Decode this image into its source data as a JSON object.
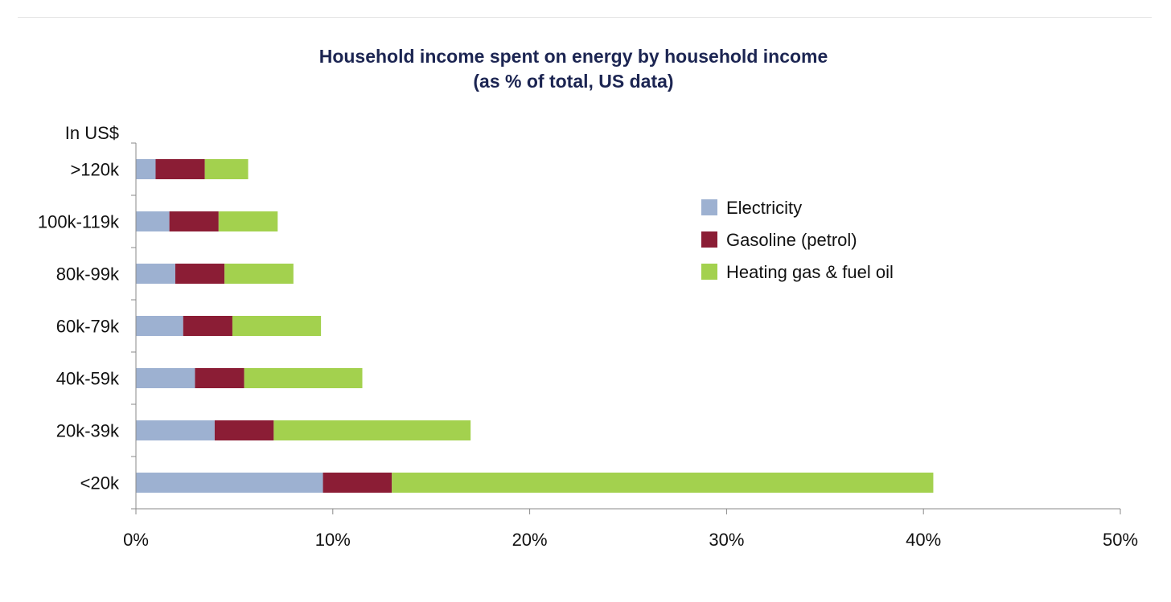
{
  "chart_data": {
    "type": "bar",
    "orientation": "horizontal",
    "stacked": true,
    "title": "Household income spent on energy by household income",
    "subtitle": "(as % of total, US data)",
    "ylabel": "In US$",
    "xlabel": "",
    "categories": [
      ">120k",
      "100k-119k",
      "80k-99k",
      "60k-79k",
      "40k-59k",
      "20k-39k",
      "<20k"
    ],
    "series": [
      {
        "name": "Electricity",
        "color": "#9db1d1",
        "values": [
          1.0,
          1.7,
          2.0,
          2.4,
          3.0,
          4.0,
          9.5
        ]
      },
      {
        "name": "Gasoline (petrol)",
        "color": "#8b1d35",
        "values": [
          2.5,
          2.5,
          2.5,
          2.5,
          2.5,
          3.0,
          3.5
        ]
      },
      {
        "name": "Heating gas & fuel oil",
        "color": "#a3d14e",
        "values": [
          2.2,
          3.0,
          3.5,
          4.5,
          6.0,
          10.0,
          27.5
        ]
      }
    ],
    "xlim": [
      0,
      50
    ],
    "xticks": [
      "0%",
      "10%",
      "20%",
      "30%",
      "40%",
      "50%"
    ],
    "grid": false,
    "legend": "right"
  }
}
